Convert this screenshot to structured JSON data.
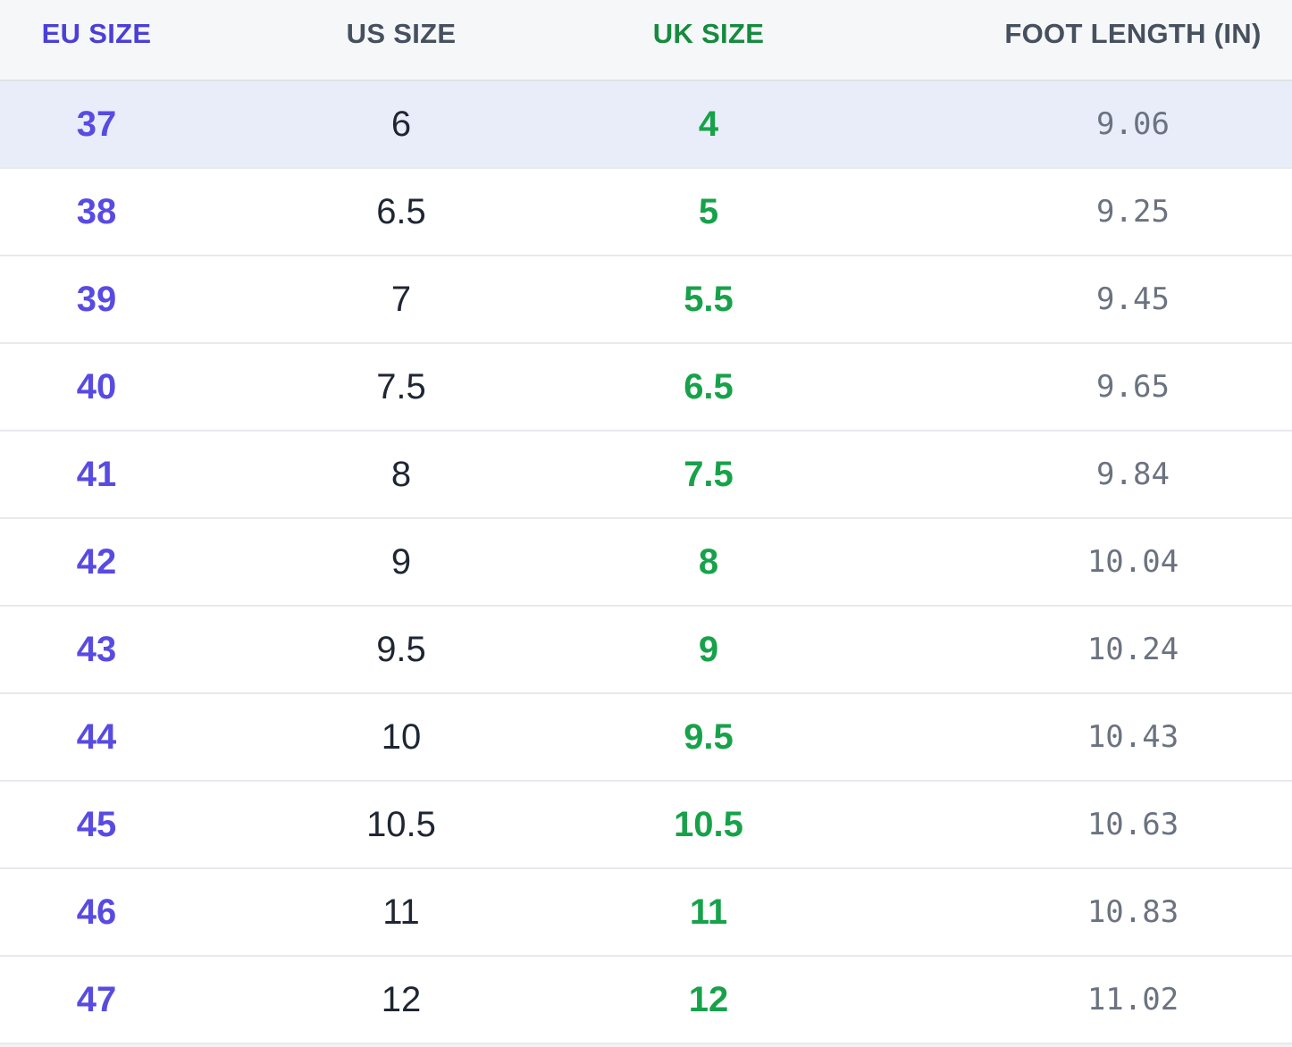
{
  "chart_data": {
    "type": "table",
    "columns": [
      "EU SIZE",
      "US SIZE",
      "UK SIZE",
      "FOOT LENGTH (IN)"
    ],
    "rows": [
      {
        "eu": "37",
        "us": "6",
        "uk": "4",
        "foot": "9.06",
        "highlighted": true
      },
      {
        "eu": "38",
        "us": "6.5",
        "uk": "5",
        "foot": "9.25",
        "highlighted": false
      },
      {
        "eu": "39",
        "us": "7",
        "uk": "5.5",
        "foot": "9.45",
        "highlighted": false
      },
      {
        "eu": "40",
        "us": "7.5",
        "uk": "6.5",
        "foot": "9.65",
        "highlighted": false
      },
      {
        "eu": "41",
        "us": "8",
        "uk": "7.5",
        "foot": "9.84",
        "highlighted": false
      },
      {
        "eu": "42",
        "us": "9",
        "uk": "8",
        "foot": "10.04",
        "highlighted": false
      },
      {
        "eu": "43",
        "us": "9.5",
        "uk": "9",
        "foot": "10.24",
        "highlighted": false
      },
      {
        "eu": "44",
        "us": "10",
        "uk": "9.5",
        "foot": "10.43",
        "highlighted": false
      },
      {
        "eu": "45",
        "us": "10.5",
        "uk": "10.5",
        "foot": "10.63",
        "highlighted": false
      },
      {
        "eu": "46",
        "us": "11",
        "uk": "11",
        "foot": "10.83",
        "highlighted": false
      },
      {
        "eu": "47",
        "us": "12",
        "uk": "12",
        "foot": "11.02",
        "highlighted": false
      }
    ]
  },
  "colors": {
    "eu_header": "#4b3fd8",
    "eu_value": "#584be2",
    "us_header": "#46505e",
    "us_value": "#1f2633",
    "uk_header": "#168a3f",
    "uk_value": "#17a24a",
    "foot_header": "#46505e",
    "foot_value": "#6b7280",
    "header_background": "#f6f7f9",
    "highlight_row_background": "#e9edf9",
    "row_border": "#e7e9ee"
  }
}
